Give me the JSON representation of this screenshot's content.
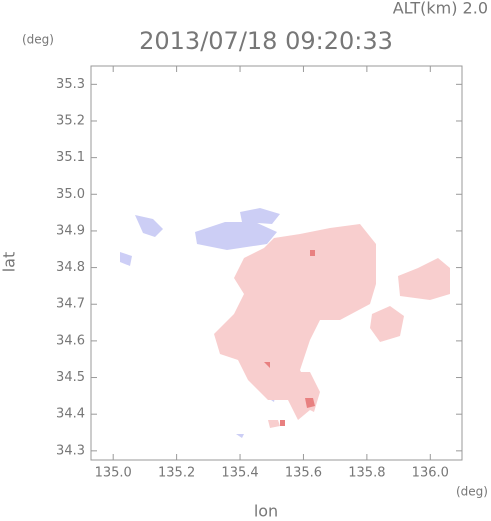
{
  "chart_data": {
    "type": "map",
    "title": "2013/07/18 09:20:33",
    "subtitle": "ALT(km)  2.0",
    "x_label": "lon",
    "x_unit": "(deg)",
    "y_label": "lat",
    "y_unit": "(deg)",
    "xlim": [
      134.93,
      136.1
    ],
    "xticks": [
      {
        "value": 135,
        "label": "135.0"
      },
      135.2,
      135.4,
      135.6,
      135.8,
      {
        "value": 136,
        "label": "136.0"
      }
    ],
    "ylim": [
      34.275,
      35.35
    ],
    "yticks": [
      35.3,
      35.2,
      35.1,
      {
        "value": 35,
        "label": "35.0"
      },
      34.9,
      34.8,
      34.7,
      34.6,
      34.5,
      34.4,
      34.3
    ]
  }
}
